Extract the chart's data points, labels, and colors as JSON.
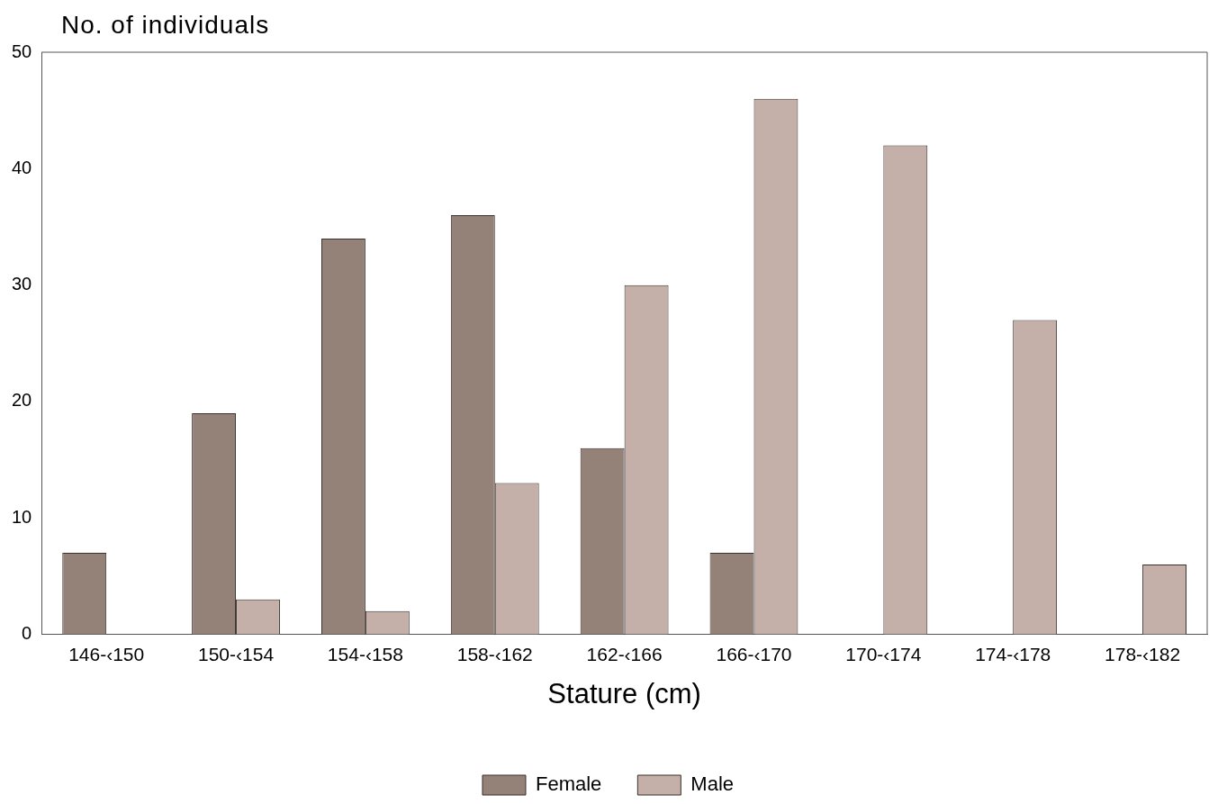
{
  "chart_data": {
    "type": "bar",
    "ylabel": "No. of individuals",
    "xlabel": "Stature (cm)",
    "categories": [
      "146-‹150",
      "150-‹154",
      "154-‹158",
      "158-‹162",
      "162-‹166",
      "166-‹170",
      "170-‹174",
      "174-‹178",
      "178-‹182"
    ],
    "series": [
      {
        "name": "Female",
        "color": "#948279",
        "values": [
          7,
          19,
          34,
          36,
          16,
          7,
          null,
          null,
          null
        ]
      },
      {
        "name": "Male",
        "color": "#c4b0a8",
        "values": [
          null,
          3,
          2,
          13,
          30,
          46,
          42,
          27,
          6
        ]
      }
    ],
    "ylim": [
      0,
      50
    ],
    "yticks": [
      0,
      10,
      20,
      30,
      40,
      50
    ],
    "grid": false,
    "legend": "bottom"
  }
}
